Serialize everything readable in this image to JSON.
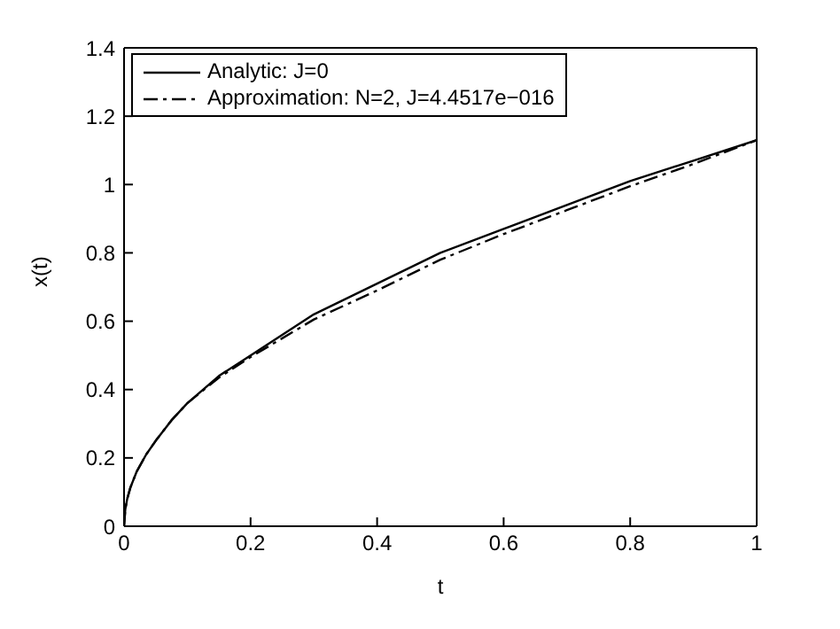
{
  "chart_data": {
    "type": "line",
    "xlabel": "t",
    "ylabel": "x(t)",
    "xlim": [
      0,
      1
    ],
    "xticks": [
      0,
      0.2,
      0.4,
      0.6,
      0.8,
      1
    ],
    "ylim": [
      0,
      1.4
    ],
    "yticks": [
      0,
      0.2,
      0.4,
      0.6,
      0.8,
      1,
      1.2,
      1.4
    ],
    "grid": false,
    "legend": "top left",
    "marker": "none",
    "series": [
      {
        "name": "Analytic: J=0",
        "color": "#000000",
        "line_style": "solid",
        "x": [
          0,
          0.002,
          0.005,
          0.01,
          0.02,
          0.035,
          0.05,
          0.075,
          0.1,
          0.15,
          0.2,
          0.25,
          0.3,
          0.4,
          0.5,
          0.6,
          0.7,
          0.8,
          0.9,
          1
        ],
        "values": [
          0,
          0.05,
          0.08,
          0.113,
          0.16,
          0.21,
          0.25,
          0.31,
          0.36,
          0.44,
          0.5,
          0.56,
          0.62,
          0.71,
          0.8,
          0.87,
          0.94,
          1.01,
          1.07,
          1.13
        ]
      },
      {
        "name": "Approximation: N=2, J=4.4517e−016",
        "color": "#000000",
        "line_style": "dashdot",
        "x": [
          0,
          0.002,
          0.005,
          0.01,
          0.02,
          0.035,
          0.05,
          0.075,
          0.1,
          0.15,
          0.2,
          0.25,
          0.3,
          0.4,
          0.5,
          0.6,
          0.7,
          0.8,
          0.9,
          1
        ],
        "values": [
          0,
          0.05,
          0.08,
          0.113,
          0.16,
          0.21,
          0.25,
          0.31,
          0.36,
          0.435,
          0.495,
          0.55,
          0.605,
          0.69,
          0.78,
          0.855,
          0.925,
          0.995,
          1.06,
          1.13
        ]
      }
    ]
  }
}
